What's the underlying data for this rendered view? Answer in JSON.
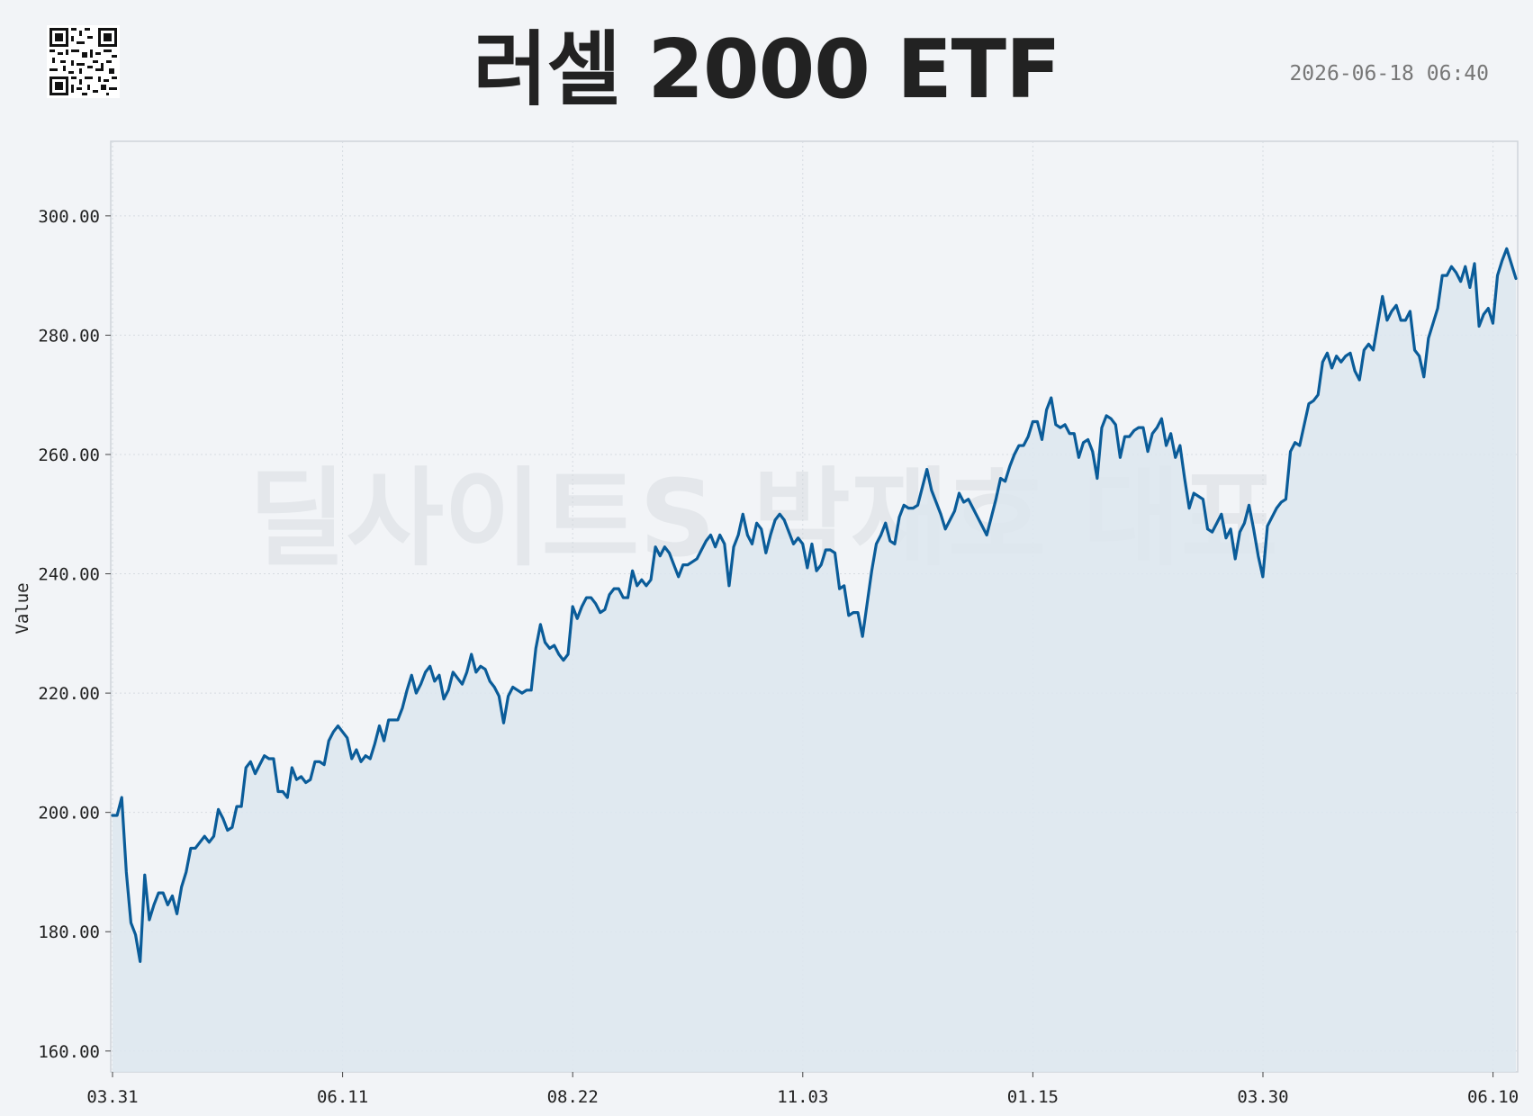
{
  "header": {
    "title": "러셀 2000 ETF",
    "timestamp": "2026-06-18 06:40"
  },
  "watermark": "딜사이트S 박재호 대표",
  "colors": {
    "background": "#f2f4f7",
    "line": "#0a5c99",
    "fill": "#dde6ee",
    "grid": "#d6dbe1",
    "frame": "#cfd4da"
  },
  "icons": {
    "qr": "qr-code-icon"
  },
  "chart_data": {
    "type": "area",
    "title": "러셀 2000 ETF",
    "xlabel": "",
    "ylabel": "Value",
    "ylim": [
      156.5,
      312.5
    ],
    "yticks": [
      160,
      180,
      200,
      220,
      240,
      260,
      280,
      300
    ],
    "ytick_labels": [
      "160.00",
      "180.00",
      "200.00",
      "220.00",
      "240.00",
      "260.00",
      "280.00",
      "300.00"
    ],
    "xticks": [
      "03.31",
      "06.11",
      "08.22",
      "11.03",
      "01.15",
      "03.30",
      "06.10"
    ],
    "grid": true,
    "series": [
      {
        "values": [
          199.5,
          199.5,
          202.5,
          190,
          181.5,
          179.5,
          175,
          189.5,
          182,
          184.5,
          186.5,
          186.5,
          184.5,
          186,
          183,
          187.5,
          190,
          194,
          194,
          195,
          196,
          195,
          196,
          200.5,
          199,
          197,
          197.5,
          201,
          201,
          207.5,
          208.5,
          206.5,
          208,
          209.5,
          209,
          209,
          203.5,
          203.5,
          202.5,
          207.5,
          205.5,
          206,
          205,
          205.5,
          208.5,
          208.5,
          208,
          212,
          213.5,
          214.5,
          213.5,
          212.5,
          209,
          210.5,
          208.5,
          209.5,
          209,
          211.5,
          214.5,
          212,
          215.5,
          215.5,
          215.5,
          217.5,
          220.5,
          223,
          220,
          221.5,
          223.5,
          224.5,
          222,
          223,
          219,
          220.5,
          223.5,
          222.5,
          221.5,
          223.5,
          226.5,
          223.5,
          224.5,
          224,
          222,
          221,
          219.5,
          215,
          219.5,
          221,
          220.5,
          220,
          220.5,
          220.5,
          227.5,
          231.5,
          228.5,
          227.5,
          228,
          226.5,
          225.5,
          226.5,
          234.5,
          232.5,
          234.5,
          236,
          236,
          235,
          233.5,
          234,
          236.5,
          237.5,
          237.5,
          236,
          236,
          240.5,
          238,
          239,
          238,
          239,
          244.5,
          243,
          244.5,
          243.5,
          241.5,
          239.5,
          241.5,
          241.5,
          242,
          242.5,
          244,
          245.5,
          246.5,
          244.5,
          246.5,
          245,
          238,
          244.5,
          246.5,
          250,
          246.5,
          245,
          248.5,
          247.5,
          243.5,
          246.5,
          249,
          250,
          249,
          247,
          245,
          246,
          245,
          241,
          245,
          240.5,
          241.5,
          244,
          244,
          243.5,
          237.5,
          238,
          233,
          233.5,
          233.5,
          229.5,
          235,
          240.5,
          245,
          246.5,
          248.5,
          245.5,
          245,
          249.5,
          251.5,
          251,
          251,
          251.5,
          254.5,
          257.5,
          254,
          252,
          250,
          247.5,
          249,
          250.5,
          253.5,
          252,
          252.5,
          251,
          249.5,
          248,
          246.5,
          249.5,
          252.5,
          256,
          255.5,
          258,
          260,
          261.5,
          261.5,
          263,
          265.5,
          265.5,
          262.5,
          267.5,
          269.5,
          265,
          264.5,
          265,
          263.5,
          263.5,
          259.5,
          262,
          262.5,
          260.5,
          256,
          264.5,
          266.5,
          266,
          265,
          259.5,
          263,
          263,
          264,
          264.5,
          264.5,
          260.5,
          263.5,
          264.5,
          266,
          261.5,
          263.5,
          259.5,
          261.5,
          256,
          251,
          253.5,
          253,
          252.5,
          247.5,
          247,
          248.5,
          250,
          246,
          247.5,
          242.5,
          247,
          248.5,
          251.5,
          247.5,
          243,
          239.5,
          248,
          249.5,
          251,
          252,
          252.5,
          260.5,
          262,
          261.5,
          265,
          268.5,
          269,
          270,
          275.5,
          277,
          274.5,
          276.5,
          275.5,
          276.5,
          277,
          274,
          272.5,
          277.5,
          278.5,
          277.5,
          282,
          286.5,
          282.5,
          284,
          285,
          282.5,
          282.5,
          284,
          277.5,
          276.5,
          273,
          279.5,
          282,
          284.5,
          290,
          290,
          291.5,
          290.5,
          289,
          291.5,
          288,
          292,
          281.5,
          283.5,
          284.5,
          282,
          290,
          292.5,
          294.5,
          292,
          289.5
        ]
      }
    ]
  }
}
